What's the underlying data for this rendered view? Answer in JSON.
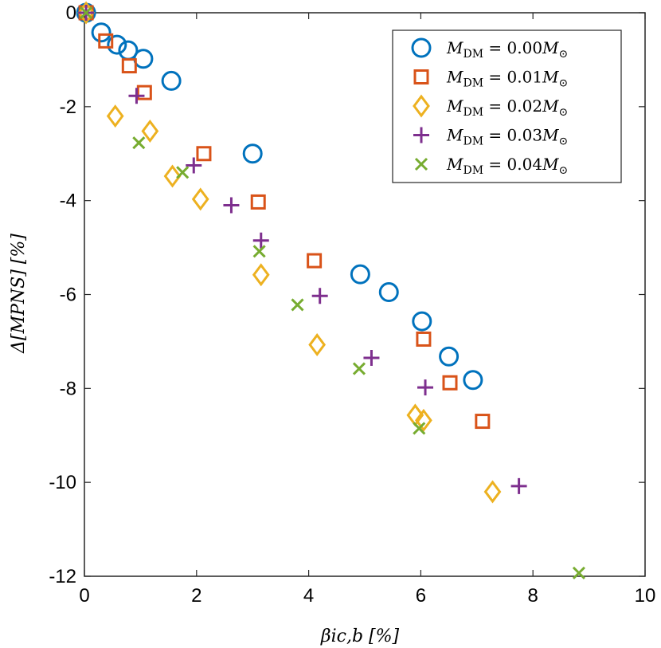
{
  "chart_data": {
    "type": "scatter",
    "xlabel": "βic,b [%]",
    "ylabel": "Δ[MPNS] [%]",
    "xlim": [
      0,
      10
    ],
    "ylim": [
      -12,
      0
    ],
    "xticks": [
      "0",
      "2",
      "4",
      "6",
      "8",
      "10"
    ],
    "yticks": [
      "0",
      "-2",
      "-4",
      "-6",
      "-8",
      "-10",
      "-12"
    ],
    "grid": false,
    "legend_position": "top-right",
    "series": [
      {
        "name": "MDM = 0.00M⊙",
        "label_value": "0.00",
        "marker": "circle",
        "color": "#0072BD",
        "points": [
          [
            0.03,
            0.0
          ],
          [
            0.3,
            -0.42
          ],
          [
            0.58,
            -0.68
          ],
          [
            0.78,
            -0.8
          ],
          [
            1.05,
            -0.98
          ],
          [
            1.55,
            -1.45
          ],
          [
            3.0,
            -3.0
          ],
          [
            4.92,
            -5.57
          ],
          [
            5.43,
            -5.95
          ],
          [
            6.02,
            -6.57
          ],
          [
            6.5,
            -7.32
          ],
          [
            6.93,
            -7.82
          ]
        ]
      },
      {
        "name": "MDM = 0.01M⊙",
        "label_value": "0.01",
        "marker": "square",
        "color": "#D95319",
        "points": [
          [
            0.03,
            0.0
          ],
          [
            0.38,
            -0.6
          ],
          [
            0.8,
            -1.13
          ],
          [
            1.07,
            -1.7
          ],
          [
            2.13,
            -3.0
          ],
          [
            3.1,
            -4.03
          ],
          [
            4.1,
            -5.28
          ],
          [
            6.05,
            -6.95
          ],
          [
            6.52,
            -7.88
          ],
          [
            7.1,
            -8.7
          ]
        ]
      },
      {
        "name": "MDM = 0.02M⊙",
        "label_value": "0.02",
        "marker": "diamond",
        "color": "#EDB120",
        "points": [
          [
            0.03,
            0.0
          ],
          [
            0.55,
            -2.2
          ],
          [
            1.17,
            -2.52
          ],
          [
            1.57,
            -3.48
          ],
          [
            2.07,
            -3.97
          ],
          [
            3.15,
            -5.58
          ],
          [
            4.15,
            -7.07
          ],
          [
            5.9,
            -8.57
          ],
          [
            6.05,
            -8.68
          ],
          [
            7.28,
            -10.2
          ]
        ]
      },
      {
        "name": "MDM = 0.03M⊙",
        "label_value": "0.03",
        "marker": "plus",
        "color": "#7E2F8E",
        "points": [
          [
            0.03,
            0.0
          ],
          [
            0.93,
            -1.77
          ],
          [
            1.95,
            -3.25
          ],
          [
            2.62,
            -4.1
          ],
          [
            3.15,
            -4.85
          ],
          [
            4.2,
            -6.03
          ],
          [
            5.12,
            -7.35
          ],
          [
            6.08,
            -7.98
          ],
          [
            7.75,
            -10.08
          ]
        ]
      },
      {
        "name": "MDM = 0.04M⊙",
        "label_value": "0.04",
        "marker": "x",
        "color": "#77AC30",
        "points": [
          [
            0.03,
            0.0
          ],
          [
            0.97,
            -2.77
          ],
          [
            1.75,
            -3.4
          ],
          [
            3.12,
            -5.08
          ],
          [
            3.8,
            -6.22
          ],
          [
            4.9,
            -7.58
          ],
          [
            5.97,
            -8.85
          ],
          [
            8.82,
            -11.93
          ]
        ]
      }
    ]
  }
}
